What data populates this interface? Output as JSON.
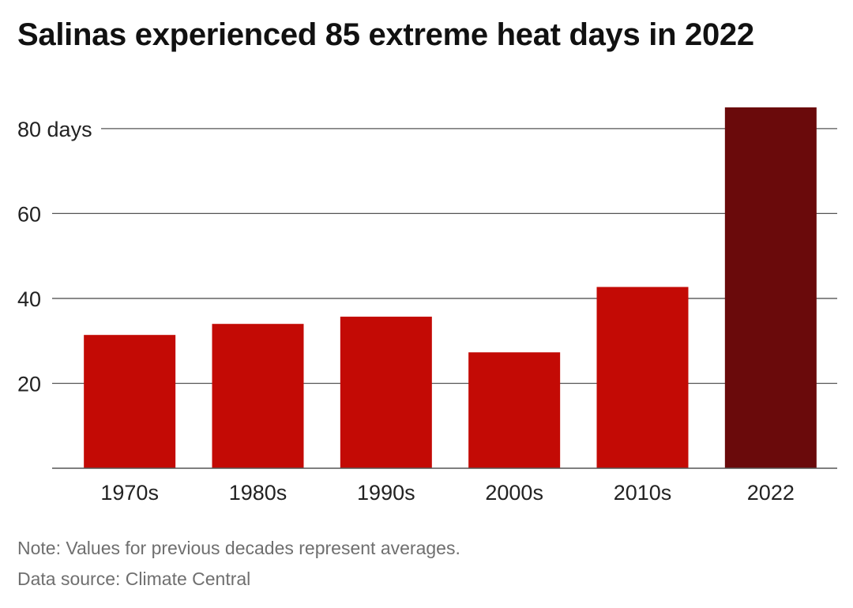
{
  "title": "Salinas experienced 85 extreme heat days in 2022",
  "notes": {
    "note": "Note: Values for previous decades represent averages.",
    "source": "Data source: Climate Central"
  },
  "colors": {
    "bar": "#c30a05",
    "highlight_bar": "#6a0a0b",
    "grid": "#555555",
    "axis_text": "#222222"
  },
  "chart_data": {
    "type": "bar",
    "categories": [
      "1970s",
      "1980s",
      "1990s",
      "2000s",
      "2010s",
      "2022"
    ],
    "values": [
      31.4,
      34.0,
      35.7,
      27.3,
      42.7,
      85
    ],
    "highlight_index": 5,
    "ylim": [
      0,
      85
    ],
    "yticks": [
      20,
      40,
      60,
      80
    ],
    "ytick_labels": [
      "20",
      "40",
      "60",
      "80 days"
    ],
    "grid": true
  }
}
